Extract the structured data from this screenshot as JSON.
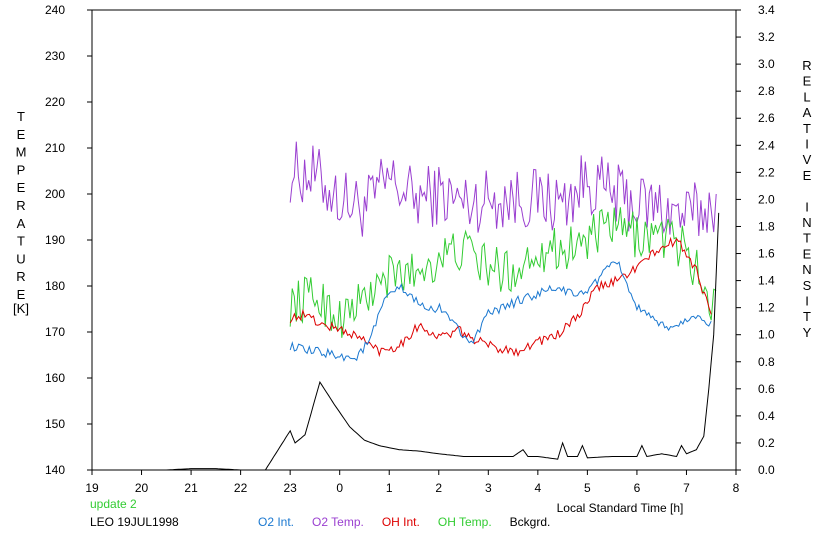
{
  "chart_data": {
    "type": "line",
    "ylabel_left_letters": [
      "T",
      "E",
      "M",
      "P",
      "E",
      "R",
      "A",
      "T",
      "U",
      "R",
      "E"
    ],
    "ylabel_left_unit": "[K]",
    "ylabel_right_letters": [
      "R",
      "E",
      "L",
      "A",
      "T",
      "I",
      "V",
      "E",
      "",
      "I",
      "N",
      "T",
      "E",
      "N",
      "S",
      "I",
      "T",
      "Y"
    ],
    "xlabel": "Local Standard Time [h]",
    "x_ticks": [
      "19",
      "20",
      "21",
      "22",
      "23",
      "0",
      "1",
      "2",
      "3",
      "4",
      "5",
      "6",
      "7",
      "8"
    ],
    "xlim": [
      19,
      32
    ],
    "y_left_ticks": [
      "140",
      "150",
      "160",
      "170",
      "180",
      "190",
      "200",
      "210",
      "220",
      "230",
      "240"
    ],
    "y_left_lim": [
      140,
      240
    ],
    "y_right_ticks": [
      "0.0",
      "0.2",
      "0.4",
      "0.6",
      "0.8",
      "1.0",
      "1.2",
      "1.4",
      "1.6",
      "1.8",
      "2.0",
      "2.2",
      "2.4",
      "2.6",
      "2.8",
      "3.0",
      "3.2",
      "3.4"
    ],
    "y_right_lim": [
      0,
      3.4
    ],
    "grid": false,
    "series": [
      {
        "name": "O2 Temp.",
        "axis": "left",
        "color": "#9a3fd0",
        "noise": 7,
        "x": [
          23.0,
          23.5,
          24.0,
          24.5,
          25.0,
          25.5,
          26.0,
          26.5,
          27.0,
          27.5,
          28.0,
          28.5,
          29.0,
          29.5,
          30.0,
          30.5,
          31.0,
          31.5,
          31.6
        ],
        "y": [
          205,
          204,
          199,
          197,
          203,
          199,
          200,
          198,
          199,
          199,
          199,
          198,
          203,
          200,
          198,
          197,
          195,
          197,
          200
        ]
      },
      {
        "name": "OH Temp.",
        "axis": "left",
        "color": "#33cc33",
        "noise": 5,
        "x": [
          23.0,
          23.5,
          24.0,
          24.5,
          25.0,
          25.5,
          26.0,
          26.5,
          27.0,
          27.5,
          28.0,
          28.5,
          29.0,
          29.5,
          30.0,
          30.5,
          31.0,
          31.5,
          31.6
        ],
        "y": [
          176,
          178,
          173,
          177,
          182,
          183,
          186,
          188,
          184,
          183,
          188,
          188,
          190,
          193,
          191,
          191,
          188,
          176,
          179
        ]
      },
      {
        "name": "OH Int.",
        "axis": "right",
        "color": "#dd0000",
        "noise": 0.035,
        "x": [
          23.0,
          23.3,
          23.6,
          24.0,
          24.4,
          24.8,
          25.2,
          25.6,
          26.0,
          26.4,
          26.8,
          27.2,
          27.6,
          28.0,
          28.4,
          28.8,
          29.2,
          29.6,
          30.0,
          30.4,
          30.8,
          31.0,
          31.2,
          31.4,
          31.5
        ],
        "y": [
          1.12,
          1.15,
          1.08,
          1.04,
          0.98,
          0.88,
          0.92,
          1.07,
          0.98,
          1.03,
          0.95,
          0.9,
          0.88,
          0.95,
          1.0,
          1.13,
          1.35,
          1.4,
          1.5,
          1.62,
          1.7,
          1.6,
          1.48,
          1.25,
          1.15
        ]
      },
      {
        "name": "O2 Int.",
        "axis": "right",
        "color": "#1b78d0",
        "noise": 0.035,
        "x": [
          23.0,
          23.3,
          23.6,
          24.0,
          24.3,
          24.6,
          24.9,
          25.2,
          25.5,
          25.8,
          26.1,
          26.4,
          26.7,
          27.0,
          27.3,
          27.6,
          28.0,
          28.4,
          28.8,
          29.2,
          29.6,
          30.0,
          30.4,
          30.8,
          31.1,
          31.4,
          31.5
        ],
        "y": [
          0.92,
          0.88,
          0.87,
          0.85,
          0.82,
          0.95,
          1.25,
          1.35,
          1.26,
          1.18,
          1.2,
          1.03,
          0.95,
          1.15,
          1.2,
          1.25,
          1.3,
          1.35,
          1.28,
          1.4,
          1.55,
          1.2,
          1.08,
          1.05,
          1.15,
          1.08,
          1.1
        ]
      },
      {
        "name": "Bckgrd.",
        "axis": "right",
        "color": "#000000",
        "noise": 0,
        "x": [
          19.9,
          20.5,
          21.0,
          21.5,
          22.0,
          22.5,
          23.0,
          23.1,
          23.3,
          23.5,
          23.6,
          23.9,
          24.2,
          24.5,
          24.8,
          25.2,
          25.6,
          26.0,
          26.5,
          27.0,
          27.5,
          27.7,
          27.8,
          28.0,
          28.4,
          28.5,
          28.6,
          28.8,
          28.9,
          29.0,
          29.5,
          30.0,
          30.1,
          30.2,
          30.5,
          30.8,
          30.9,
          31.0,
          31.2,
          31.35,
          31.45,
          31.55,
          31.65
        ],
        "y": [
          0.0,
          0.0,
          0.01,
          0.01,
          0.0,
          0.0,
          0.29,
          0.2,
          0.26,
          0.52,
          0.65,
          0.48,
          0.32,
          0.22,
          0.18,
          0.15,
          0.14,
          0.12,
          0.1,
          0.1,
          0.1,
          0.15,
          0.1,
          0.1,
          0.08,
          0.2,
          0.1,
          0.1,
          0.18,
          0.09,
          0.1,
          0.1,
          0.18,
          0.1,
          0.12,
          0.1,
          0.18,
          0.12,
          0.15,
          0.25,
          0.6,
          1.0,
          1.9
        ]
      }
    ]
  },
  "footer": {
    "update_label": "update 2",
    "update_color": "#33cc33",
    "station_date": "LEO 19JUL1998",
    "legend": [
      {
        "label": "O2 Int.",
        "color": "#1b78d0"
      },
      {
        "label": "O2 Temp.",
        "color": "#9a3fd0"
      },
      {
        "label": "OH Int.",
        "color": "#dd0000"
      },
      {
        "label": "OH Temp.",
        "color": "#33cc33"
      },
      {
        "label": "Bckgrd.",
        "color": "#000000"
      }
    ]
  }
}
